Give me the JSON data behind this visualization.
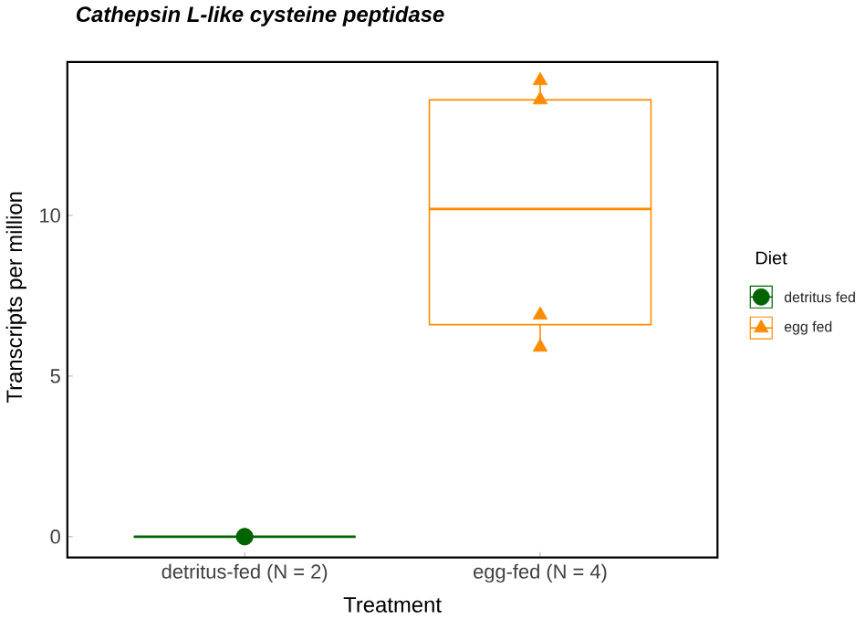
{
  "chart_data": {
    "type": "box",
    "title": "Cathepsin L-like cysteine peptidase",
    "xlabel": "Treatment",
    "ylabel": "Transcripts per million",
    "legend_title": "Diet",
    "legend": "right",
    "categories": [
      "detritus-fed (N = 2)",
      "egg-fed (N = 4)"
    ],
    "ylim": [
      -0.65,
      14.78
    ],
    "yticks": [
      0,
      5,
      10
    ],
    "series": [
      {
        "name": "detritus fed",
        "color": "#006400",
        "marker": "circle",
        "boxes": [
          {
            "low": 0,
            "q1": 0,
            "median": 0,
            "q3": 0,
            "high": 0
          },
          null
        ]
      },
      {
        "name": "egg fed",
        "color": "#ff8c00",
        "marker": "triangle",
        "boxes": [
          null,
          {
            "low": 5.9,
            "q1": 6.6,
            "median": 10.2,
            "q3": 13.6,
            "high": 14.2
          }
        ]
      },
      {
        "color": "#006400",
        "type": "scatter",
        "marker": "circle",
        "x": [
          "detritus-fed (N = 2)",
          "detritus-fed (N = 2)"
        ],
        "values": [
          0,
          0
        ]
      },
      {
        "color": "#ff8c00",
        "type": "scatter",
        "marker": "triangle",
        "x": [
          "egg-fed (N = 4)",
          "egg-fed (N = 4)",
          "egg-fed (N = 4)",
          "egg-fed (N = 4)"
        ],
        "values": [
          14.2,
          13.6,
          6.9,
          5.9
        ]
      }
    ]
  }
}
